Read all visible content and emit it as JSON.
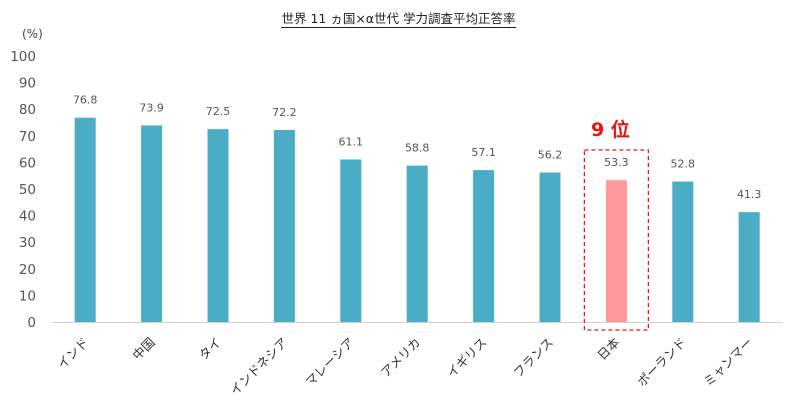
{
  "chart_data": {
    "type": "bar",
    "title": "世界 11 ヵ国×α世代 学力調査平均正答率",
    "ylabel": "(%)",
    "ylim": [
      0,
      100
    ],
    "yticks": [
      "100",
      "90",
      "80",
      "70",
      "60",
      "50",
      "40",
      "30",
      "20",
      "10",
      "0"
    ],
    "categories": [
      "インド",
      "中国",
      "タイ",
      "インドネシア",
      "マレーシア",
      "アメリカ",
      "イギリス",
      "フランス",
      "日本",
      "ポーランド",
      "ミャンマー"
    ],
    "values": [
      76.8,
      73.9,
      72.5,
      72.2,
      61.1,
      58.8,
      57.1,
      56.2,
      53.3,
      52.8,
      41.3
    ],
    "value_labels": [
      "76.8",
      "73.9",
      "72.5",
      "72.2",
      "61.1",
      "58.8",
      "57.1",
      "56.2",
      "53.3",
      "52.8",
      "41.3"
    ],
    "bar_color": "#4bacc6",
    "highlight": {
      "category": "日本",
      "color": "#ff9999",
      "label": "9 位",
      "label_color": "#ee1111"
    },
    "grid": false,
    "legend": "none"
  }
}
